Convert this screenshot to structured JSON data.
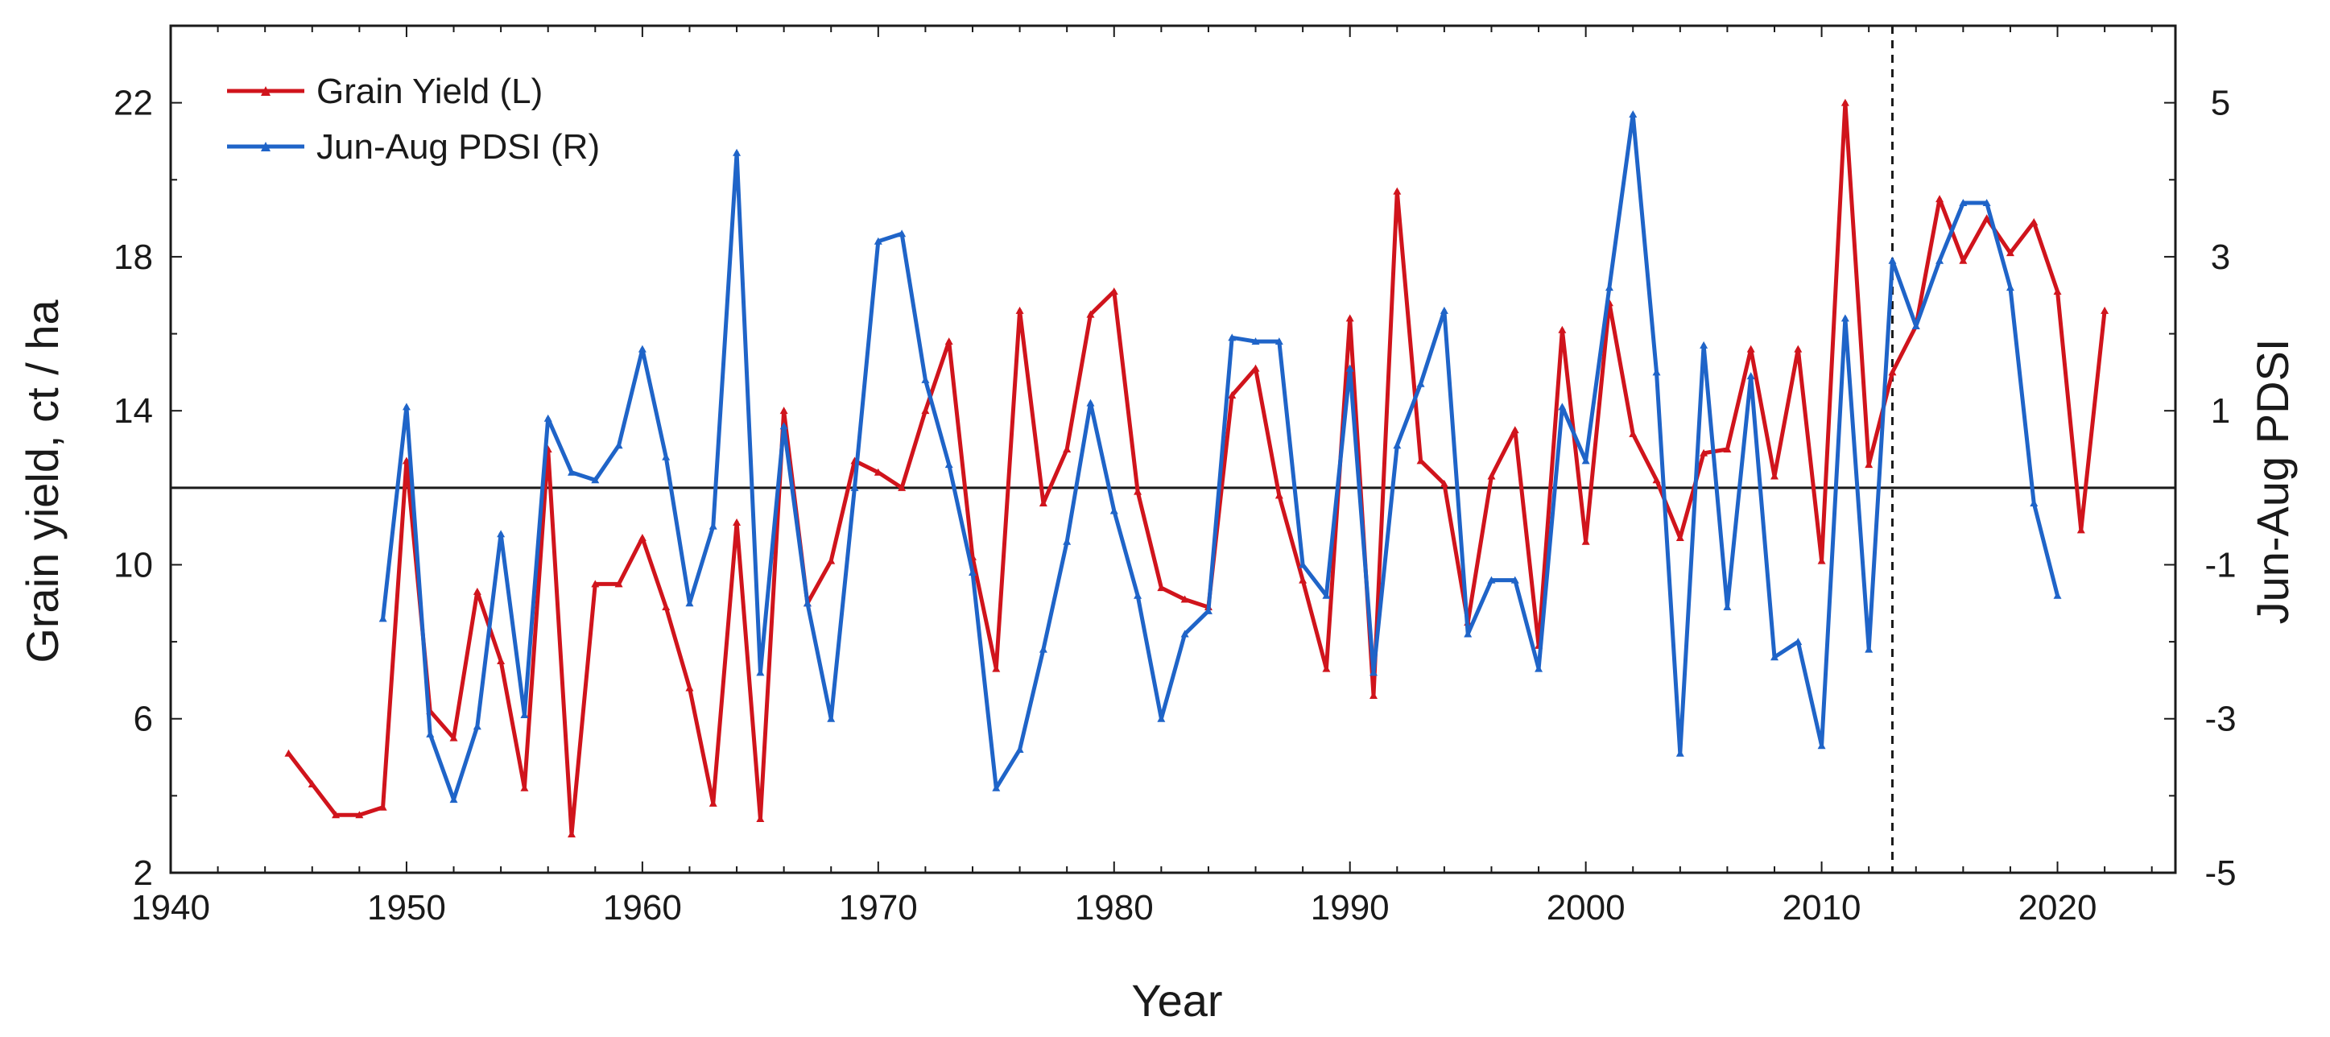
{
  "chart_data": {
    "type": "line",
    "title": "",
    "xlabel": "Year",
    "ylabel_left": "Grain yield, ct / ha",
    "ylabel_right": "Jun-Aug PDSI",
    "xlim": [
      1940,
      2025
    ],
    "ylim_left": [
      2,
      24
    ],
    "ylim_right": [
      -5,
      6
    ],
    "x_ticks": [
      1940,
      1950,
      1960,
      1970,
      1980,
      1990,
      2000,
      2010,
      2020
    ],
    "y_ticks_left": [
      2,
      6,
      10,
      14,
      18,
      22
    ],
    "y_ticks_right": [
      -5,
      -3,
      -1,
      1,
      3,
      5
    ],
    "reference_line_left": 12,
    "vertical_dashed_x": 2013,
    "grid": false,
    "legend_position": "top-left",
    "series": [
      {
        "name": "Grain Yield (L)",
        "axis": "left",
        "color": "#d0141c",
        "x": [
          1945,
          1946,
          1947,
          1948,
          1949,
          1950,
          1951,
          1952,
          1953,
          1954,
          1955,
          1956,
          1957,
          1958,
          1959,
          1960,
          1961,
          1962,
          1963,
          1964,
          1965,
          1966,
          1967,
          1968,
          1969,
          1970,
          1971,
          1972,
          1973,
          1974,
          1975,
          1976,
          1977,
          1978,
          1979,
          1980,
          1981,
          1982,
          1983,
          1984,
          1985,
          1986,
          1987,
          1988,
          1989,
          1990,
          1991,
          1992,
          1993,
          1994,
          1995,
          1996,
          1997,
          1998,
          1999,
          2000,
          2001,
          2002,
          2003,
          2004,
          2005,
          2006,
          2007,
          2008,
          2009,
          2010,
          2011,
          2012,
          2013,
          2014,
          2015,
          2016,
          2017,
          2018,
          2019,
          2020,
          2021,
          2022
        ],
        "values": [
          5.1,
          4.3,
          3.5,
          3.5,
          3.7,
          12.7,
          6.2,
          5.5,
          9.3,
          7.5,
          4.2,
          13.0,
          3.0,
          9.5,
          9.5,
          10.7,
          8.9,
          6.8,
          3.8,
          11.1,
          3.4,
          14.0,
          9.0,
          10.1,
          12.7,
          12.4,
          12.0,
          14.0,
          15.8,
          10.2,
          7.3,
          16.6,
          11.6,
          13.0,
          16.5,
          17.1,
          11.9,
          9.4,
          9.1,
          8.9,
          14.4,
          15.1,
          11.8,
          9.6,
          7.3,
          16.4,
          6.6,
          19.7,
          12.7,
          12.1,
          8.5,
          12.3,
          13.5,
          7.9,
          16.1,
          10.6,
          16.8,
          13.4,
          12.2,
          10.7,
          12.9,
          13.0,
          15.6,
          12.3,
          15.6,
          10.1,
          22.0,
          12.6,
          15.0,
          16.2,
          19.5,
          17.9,
          19.0,
          18.1,
          18.9,
          17.1,
          10.9,
          16.6
        ]
      },
      {
        "name": "Jun-Aug PDSI (R)",
        "axis": "right",
        "color": "#1f64c8",
        "x": [
          1949,
          1950,
          1951,
          1952,
          1953,
          1954,
          1955,
          1956,
          1957,
          1958,
          1959,
          1960,
          1961,
          1962,
          1963,
          1964,
          1965,
          1966,
          1967,
          1968,
          1969,
          1970,
          1971,
          1972,
          1973,
          1974,
          1975,
          1976,
          1977,
          1978,
          1979,
          1980,
          1981,
          1982,
          1983,
          1984,
          1985,
          1986,
          1987,
          1988,
          1989,
          1990,
          1991,
          1992,
          1993,
          1994,
          1995,
          1996,
          1997,
          1998,
          1999,
          2000,
          2001,
          2002,
          2003,
          2004,
          2005,
          2006,
          2007,
          2008,
          2009,
          2010,
          2011,
          2012,
          2013,
          2014,
          2015,
          2016,
          2017,
          2018,
          2019,
          2020
        ],
        "values": [
          -1.7,
          1.05,
          -3.2,
          -4.05,
          -3.1,
          -0.6,
          -2.95,
          0.9,
          0.2,
          0.1,
          0.55,
          1.8,
          0.4,
          -1.5,
          -0.5,
          4.35,
          -2.4,
          0.8,
          -1.5,
          -3.0,
          0.0,
          3.2,
          3.3,
          1.4,
          0.3,
          -1.1,
          -3.9,
          -3.4,
          -2.1,
          -0.7,
          1.1,
          -0.3,
          -1.4,
          -3.0,
          -1.9,
          -1.6,
          1.95,
          1.9,
          1.9,
          -1.0,
          -1.4,
          1.55,
          -2.4,
          0.55,
          1.35,
          2.3,
          -1.9,
          -1.2,
          -1.2,
          -2.35,
          1.05,
          0.35,
          2.6,
          4.85,
          1.5,
          -3.45,
          1.85,
          -1.55,
          1.45,
          -2.2,
          -2.0,
          -3.35,
          2.2,
          -2.1,
          2.95,
          2.1,
          2.95,
          3.7,
          3.7,
          2.6,
          -0.2,
          -1.4
        ]
      }
    ]
  }
}
